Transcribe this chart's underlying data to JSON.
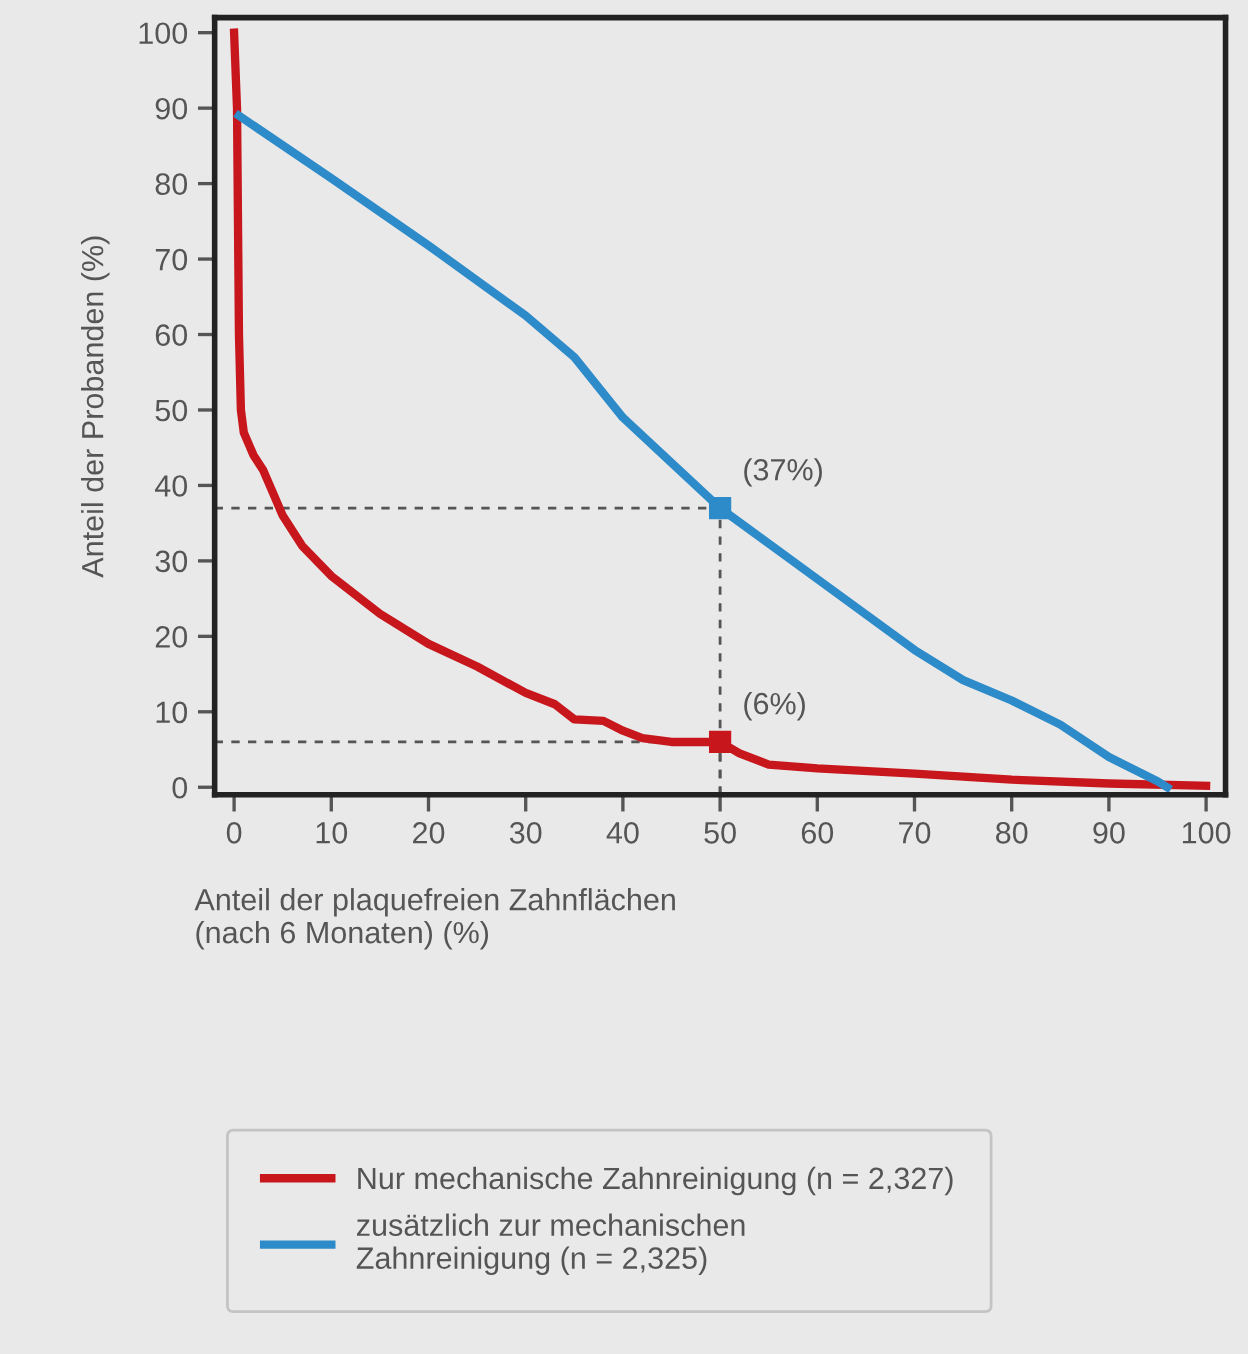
{
  "chart_data": {
    "type": "line",
    "xlabel": "Anteil der plaquefreien Zahnflächen\n(nach 6 Monaten) (%)",
    "ylabel": "Anteil der Probanden (%)",
    "xlim": [
      -2,
      102
    ],
    "ylim": [
      -1,
      102
    ],
    "xticks": [
      0,
      10,
      20,
      30,
      40,
      50,
      60,
      70,
      80,
      90,
      100
    ],
    "yticks": [
      0,
      10,
      20,
      30,
      40,
      50,
      60,
      70,
      80,
      90,
      100
    ],
    "grid": false,
    "legend": "bottom",
    "marker": "none",
    "line_style": "solid",
    "series": [
      {
        "name": "Nur mechanische Zahnreinigung (n = 2,327)",
        "color": "#c8161d",
        "x": [
          0,
          0.3,
          0.5,
          0.7,
          1,
          2,
          3,
          4,
          5,
          7,
          10,
          15,
          20,
          25,
          30,
          33,
          35,
          38,
          40,
          42,
          45,
          48,
          50,
          52,
          55,
          60,
          70,
          80,
          90,
          100
        ],
        "values": [
          100,
          90,
          60,
          50,
          47,
          44,
          42,
          39,
          36,
          32,
          28,
          23,
          19,
          16,
          12.5,
          11,
          9,
          8.8,
          7.5,
          6.5,
          6,
          6,
          6,
          4.5,
          3,
          2.5,
          1.8,
          1,
          0.5,
          0.2
        ]
      },
      {
        "name": "zusätzlich zur mechanischen\nZahnreinigung (n = 2,325)",
        "color": "#2e8bc9",
        "x": [
          0.5,
          10,
          20,
          30,
          35,
          40,
          50,
          60,
          70,
          75,
          80,
          85,
          90,
          95,
          96
        ],
        "values": [
          89,
          80.7,
          71.8,
          62.5,
          57,
          49,
          37,
          27.6,
          18.2,
          14.2,
          11.5,
          8.3,
          4,
          0.8,
          0
        ]
      }
    ],
    "annotations": [
      {
        "text": "(37%)",
        "x": 50,
        "y": 37
      },
      {
        "text": "(6%)",
        "x": 50,
        "y": 6
      }
    ]
  }
}
